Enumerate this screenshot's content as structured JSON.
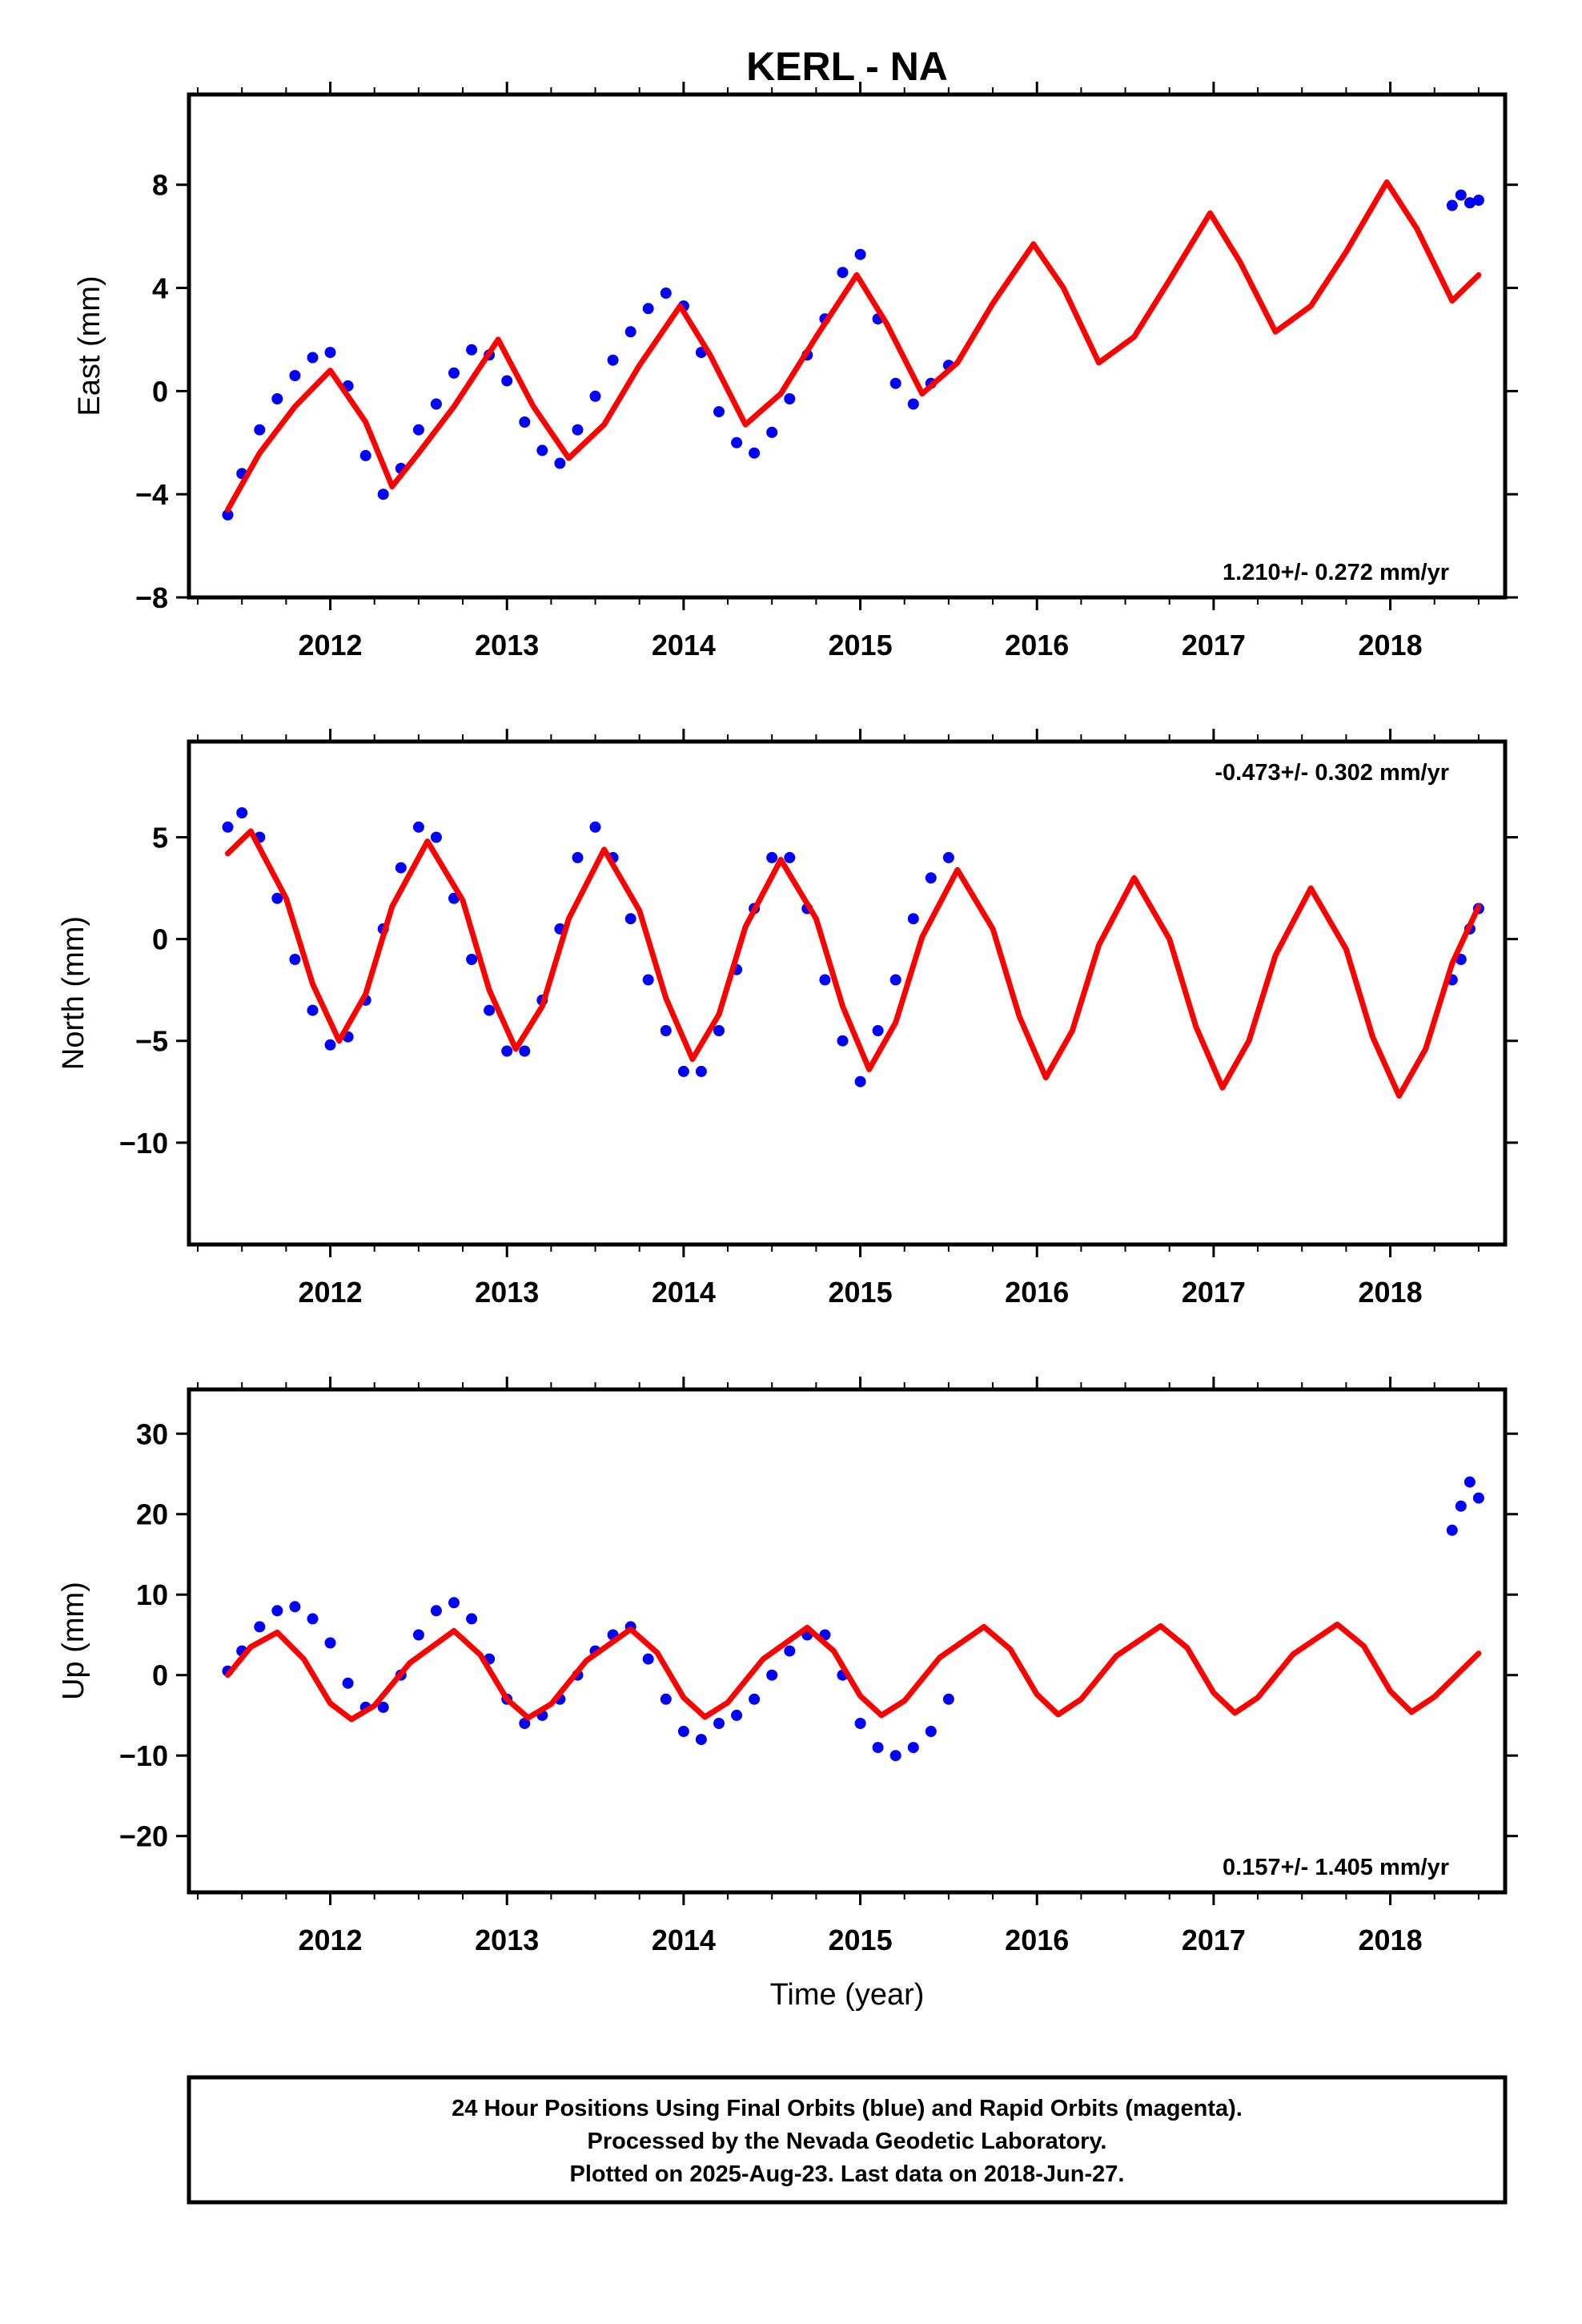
{
  "title": "KERL - NA",
  "chart_data": [
    {
      "type": "scatter",
      "ylabel": "East (mm)",
      "xlabel": "",
      "xlim": [
        2011.2,
        2018.65
      ],
      "ylim": [
        -8,
        11.5
      ],
      "xticks": [
        2012,
        2013,
        2014,
        2015,
        2016,
        2017,
        2018
      ],
      "xtick_labels": [
        "2012",
        "2013",
        "2014",
        "2015",
        "2016",
        "2017",
        "2018"
      ],
      "yticks": [
        -8,
        -4,
        0,
        4,
        8
      ],
      "ytick_labels": [
        "−8",
        "−4",
        "0",
        "4",
        "8"
      ],
      "rate": "1.210+/- 0.272 mm/yr",
      "rate_position": "bottom-right",
      "grid": false,
      "series": [
        {
          "color": "#0000ff",
          "style": "points",
          "x": [
            2011.42,
            2011.5,
            2011.6,
            2011.7,
            2011.8,
            2011.9,
            2012.0,
            2012.1,
            2012.2,
            2012.3,
            2012.4,
            2012.5,
            2012.6,
            2012.7,
            2012.8,
            2012.9,
            2013.0,
            2013.1,
            2013.2,
            2013.3,
            2013.4,
            2013.5,
            2013.6,
            2013.7,
            2013.8,
            2013.9,
            2014.0,
            2014.1,
            2014.2,
            2014.3,
            2014.4,
            2014.5,
            2014.6,
            2014.7,
            2014.8,
            2014.9,
            2015.0,
            2015.1,
            2015.2,
            2015.3,
            2015.4,
            2015.5,
            2018.35,
            2018.4,
            2018.45,
            2018.5
          ],
          "y": [
            -4.8,
            -3.2,
            -1.5,
            -0.3,
            0.6,
            1.3,
            1.5,
            0.2,
            -2.5,
            -4.0,
            -3.0,
            -1.5,
            -0.5,
            0.7,
            1.6,
            1.4,
            0.4,
            -1.2,
            -2.3,
            -2.8,
            -1.5,
            -0.2,
            1.2,
            2.3,
            3.2,
            3.8,
            3.3,
            1.5,
            -0.8,
            -2.0,
            -2.4,
            -1.6,
            -0.3,
            1.4,
            2.8,
            4.6,
            5.3,
            2.8,
            0.3,
            -0.5,
            0.3,
            1.0,
            7.2,
            7.6,
            7.3,
            7.4
          ]
        },
        {
          "color": "#ff0000",
          "style": "line",
          "x": [
            2011.42,
            2011.6,
            2011.8,
            2012.0,
            2012.2,
            2012.35,
            2012.5,
            2012.7,
            2012.95,
            2013.15,
            2013.35,
            2013.55,
            2013.75,
            2013.98,
            2014.15,
            2014.35,
            2014.55,
            2014.75,
            2014.98,
            2015.15,
            2015.35,
            2015.55,
            2015.75,
            2015.98,
            2016.15,
            2016.35,
            2016.55,
            2016.75,
            2016.98,
            2017.15,
            2017.35,
            2017.55,
            2017.75,
            2017.98,
            2018.15,
            2018.35,
            2018.5
          ],
          "y": [
            -4.6,
            -2.4,
            -0.6,
            0.8,
            -1.2,
            -3.7,
            -2.4,
            -0.6,
            2.0,
            -0.6,
            -2.6,
            -1.3,
            1.0,
            3.3,
            1.4,
            -1.3,
            -0.1,
            2.1,
            4.5,
            2.6,
            -0.1,
            1.1,
            3.4,
            5.7,
            4.0,
            1.1,
            2.1,
            4.3,
            6.9,
            5.0,
            2.3,
            3.3,
            5.4,
            8.1,
            6.3,
            3.5,
            4.5
          ]
        }
      ]
    },
    {
      "type": "scatter",
      "ylabel": "North (mm)",
      "xlabel": "",
      "xlim": [
        2011.2,
        2018.65
      ],
      "ylim": [
        -15,
        9.7
      ],
      "xticks": [
        2012,
        2013,
        2014,
        2015,
        2016,
        2017,
        2018
      ],
      "xtick_labels": [
        "2012",
        "2013",
        "2014",
        "2015",
        "2016",
        "2017",
        "2018"
      ],
      "yticks": [
        -10,
        -5,
        0,
        5
      ],
      "ytick_labels": [
        "−10",
        "−5",
        "0",
        "5"
      ],
      "rate": "-0.473+/- 0.302 mm/yr",
      "rate_position": "top-right",
      "grid": false,
      "series": [
        {
          "color": "#0000ff",
          "style": "points",
          "x": [
            2011.42,
            2011.5,
            2011.6,
            2011.7,
            2011.8,
            2011.9,
            2012.0,
            2012.1,
            2012.2,
            2012.3,
            2012.4,
            2012.5,
            2012.6,
            2012.7,
            2012.8,
            2012.9,
            2013.0,
            2013.1,
            2013.2,
            2013.3,
            2013.4,
            2013.5,
            2013.6,
            2013.7,
            2013.8,
            2013.9,
            2014.0,
            2014.1,
            2014.2,
            2014.3,
            2014.4,
            2014.5,
            2014.6,
            2014.7,
            2014.8,
            2014.9,
            2015.0,
            2015.1,
            2015.2,
            2015.3,
            2015.4,
            2015.5,
            2018.35,
            2018.4,
            2018.45,
            2018.5
          ],
          "y": [
            5.5,
            6.2,
            5.0,
            2.0,
            -1.0,
            -3.5,
            -5.2,
            -4.8,
            -3.0,
            0.5,
            3.5,
            5.5,
            5.0,
            2.0,
            -1.0,
            -3.5,
            -5.5,
            -5.5,
            -3.0,
            0.5,
            4.0,
            5.5,
            4.0,
            1.0,
            -2.0,
            -4.5,
            -6.5,
            -6.5,
            -4.5,
            -1.5,
            1.5,
            4.0,
            4.0,
            1.5,
            -2.0,
            -5.0,
            -7.0,
            -4.5,
            -2.0,
            1.0,
            3.0,
            4.0,
            -2.0,
            -1.0,
            0.5,
            1.5
          ]
        },
        {
          "color": "#ff0000",
          "style": "line",
          "x": [
            2011.42,
            2011.55,
            2011.75,
            2011.9,
            2012.05,
            2012.2,
            2012.35,
            2012.55,
            2012.75,
            2012.9,
            2013.05,
            2013.2,
            2013.35,
            2013.55,
            2013.75,
            2013.9,
            2014.05,
            2014.2,
            2014.35,
            2014.55,
            2014.75,
            2014.9,
            2015.05,
            2015.2,
            2015.35,
            2015.55,
            2015.75,
            2015.9,
            2016.05,
            2016.2,
            2016.35,
            2016.55,
            2016.75,
            2016.9,
            2017.05,
            2017.2,
            2017.35,
            2017.55,
            2017.75,
            2017.9,
            2018.05,
            2018.2,
            2018.35,
            2018.5
          ],
          "y": [
            4.2,
            5.3,
            2.0,
            -2.2,
            -5.0,
            -2.7,
            1.6,
            4.8,
            1.9,
            -2.5,
            -5.4,
            -3.3,
            1.0,
            4.4,
            1.4,
            -2.9,
            -5.9,
            -3.7,
            0.6,
            3.9,
            1.0,
            -3.3,
            -6.4,
            -4.1,
            0.1,
            3.4,
            0.5,
            -3.8,
            -6.8,
            -4.5,
            -0.3,
            3.0,
            0.0,
            -4.3,
            -7.3,
            -5.0,
            -0.8,
            2.5,
            -0.5,
            -4.8,
            -7.7,
            -5.4,
            -1.2,
            1.6
          ]
        }
      ]
    },
    {
      "type": "scatter",
      "ylabel": "Up (mm)",
      "xlabel": "Time (year)",
      "xlim": [
        2011.2,
        2018.65
      ],
      "ylim": [
        -27,
        35.5
      ],
      "xticks": [
        2012,
        2013,
        2014,
        2015,
        2016,
        2017,
        2018
      ],
      "xtick_labels": [
        "2012",
        "2013",
        "2014",
        "2015",
        "2016",
        "2017",
        "2018"
      ],
      "yticks": [
        -20,
        -10,
        0,
        10,
        20,
        30
      ],
      "ytick_labels": [
        "−20",
        "−10",
        "0",
        "10",
        "20",
        "30"
      ],
      "rate": "0.157+/- 1.405 mm/yr",
      "rate_position": "bottom-right",
      "grid": false,
      "series": [
        {
          "color": "#0000ff",
          "style": "points",
          "x": [
            2011.42,
            2011.5,
            2011.6,
            2011.7,
            2011.8,
            2011.9,
            2012.0,
            2012.1,
            2012.2,
            2012.3,
            2012.4,
            2012.5,
            2012.6,
            2012.7,
            2012.8,
            2012.9,
            2013.0,
            2013.1,
            2013.2,
            2013.3,
            2013.4,
            2013.5,
            2013.6,
            2013.7,
            2013.8,
            2013.9,
            2014.0,
            2014.1,
            2014.2,
            2014.3,
            2014.4,
            2014.5,
            2014.6,
            2014.7,
            2014.8,
            2014.9,
            2015.0,
            2015.1,
            2015.2,
            2015.3,
            2015.4,
            2015.5,
            2018.35,
            2018.4,
            2018.45,
            2018.5
          ],
          "y": [
            0.5,
            3.0,
            6.0,
            8.0,
            8.5,
            7.0,
            4.0,
            -1.0,
            -4.0,
            -4.0,
            0.0,
            5.0,
            8.0,
            9.0,
            7.0,
            2.0,
            -3.0,
            -6.0,
            -5.0,
            -3.0,
            0.0,
            3.0,
            5.0,
            6.0,
            2.0,
            -3.0,
            -7.0,
            -8.0,
            -6.0,
            -5.0,
            -3.0,
            0.0,
            3.0,
            5.0,
            5.0,
            0.0,
            -6.0,
            -9.0,
            -10.0,
            -9.0,
            -7.0,
            -3.0,
            18.0,
            21.0,
            24.0,
            22.0
          ]
        },
        {
          "color": "#ff0000",
          "style": "line",
          "x": [
            2011.42,
            2011.55,
            2011.7,
            2011.85,
            2012.0,
            2012.12,
            2012.25,
            2012.45,
            2012.7,
            2012.85,
            2013.0,
            2013.12,
            2013.25,
            2013.45,
            2013.7,
            2013.85,
            2014.0,
            2014.12,
            2014.25,
            2014.45,
            2014.7,
            2014.85,
            2015.0,
            2015.12,
            2015.25,
            2015.45,
            2015.7,
            2015.85,
            2016.0,
            2016.12,
            2016.25,
            2016.45,
            2016.7,
            2016.85,
            2017.0,
            2017.12,
            2017.25,
            2017.45,
            2017.7,
            2017.85,
            2018.0,
            2018.12,
            2018.25,
            2018.5
          ],
          "y": [
            0.0,
            3.5,
            5.3,
            2.0,
            -3.5,
            -5.5,
            -3.8,
            1.5,
            5.5,
            2.5,
            -3.0,
            -5.3,
            -3.6,
            1.8,
            5.7,
            2.8,
            -2.8,
            -5.2,
            -3.4,
            2.0,
            5.9,
            3.0,
            -2.6,
            -5.0,
            -3.2,
            2.2,
            6.0,
            3.2,
            -2.4,
            -4.9,
            -3.0,
            2.4,
            6.1,
            3.4,
            -2.2,
            -4.7,
            -2.8,
            2.6,
            6.3,
            3.6,
            -2.0,
            -4.6,
            -2.7,
            2.7
          ]
        }
      ]
    }
  ],
  "footer": {
    "line1": "24 Hour Positions Using Final Orbits (blue) and Rapid Orbits (magenta).",
    "line2": "Processed by the Nevada Geodetic Laboratory.",
    "line3": "Plotted on 2025-Aug-23. Last data on 2018-Jun-27."
  }
}
